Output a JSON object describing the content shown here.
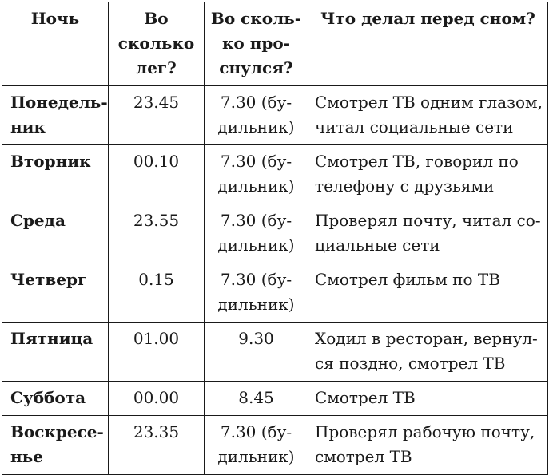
{
  "table": {
    "headers": [
      [
        "Ночь"
      ],
      [
        "Во",
        "сколько",
        "лег?"
      ],
      [
        "Во сколь-",
        "ко про-",
        "снулся?"
      ],
      [
        "Что делал перед сном?"
      ]
    ],
    "rows": [
      {
        "night": [
          "Понедель-",
          "ник"
        ],
        "bed": "23.45",
        "wake": [
          "7.30 (бу-",
          "дильник)"
        ],
        "activity": [
          "Смотрел ТВ одним глазом,",
          "читал социальные сети"
        ]
      },
      {
        "night": [
          "Вторник"
        ],
        "bed": "00.10",
        "wake": [
          "7.30 (бу-",
          "дильник)"
        ],
        "activity": [
          "Смотрел ТВ, говорил по",
          "телефону с друзьями"
        ]
      },
      {
        "night": [
          "Среда"
        ],
        "bed": "23.55",
        "wake": [
          "7.30 (бу-",
          "дильник)"
        ],
        "activity": [
          "Проверял почту, читал со-",
          "циальные сети"
        ]
      },
      {
        "night": [
          "Четверг"
        ],
        "bed": "0.15",
        "wake": [
          "7.30 (бу-",
          "дильник)"
        ],
        "activity": [
          "Смотрел фильм по ТВ"
        ]
      },
      {
        "night": [
          "Пятница"
        ],
        "bed": "01.00",
        "wake": [
          "9.30"
        ],
        "activity": [
          "Ходил в ресторан, вернул-",
          "ся поздно, смотрел ТВ"
        ]
      },
      {
        "night": [
          "Суббота"
        ],
        "bed": "00.00",
        "wake": [
          "8.45"
        ],
        "activity": [
          "Смотрел ТВ"
        ]
      },
      {
        "night": [
          "Воскресе-",
          "нье"
        ],
        "bed": "23.35",
        "wake": [
          "7.30 (бу-",
          "дильник)"
        ],
        "activity": [
          "Проверял рабочую почту,",
          "смотрел ТВ"
        ]
      }
    ]
  }
}
